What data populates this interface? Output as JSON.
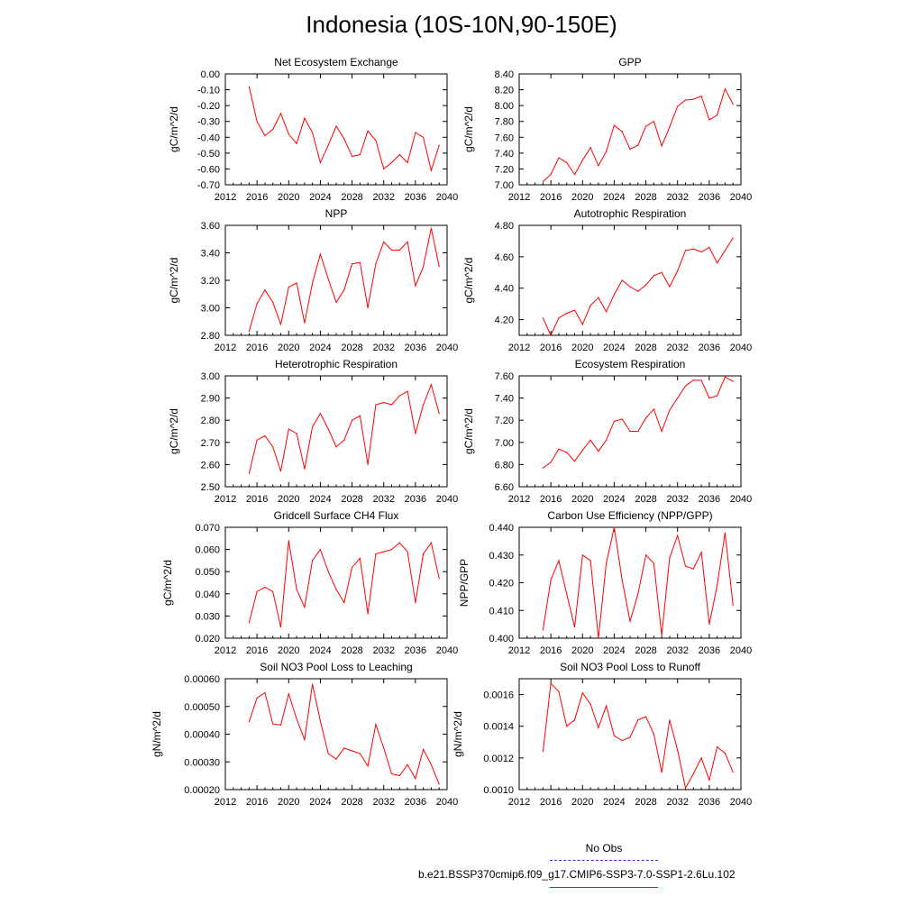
{
  "page": {
    "title": "Indonesia (10S-10N,90-150E)"
  },
  "legend": {
    "items": [
      {
        "label": "No Obs",
        "color": "#3333cc",
        "dash": true
      },
      {
        "label": "b.e21.BSSP370cmip6.f09_g17.CMIP6-SSP3-7.0-SSP1-2.6Lu.102",
        "color": "#ff0000",
        "dash": false
      }
    ]
  },
  "chart_data": [
    {
      "type": "line",
      "title": "Net Ecosystem Exchange",
      "ylabel": "gC/m^2/d",
      "xlabel": "",
      "xlim": [
        2012,
        2040
      ],
      "ylim": [
        -0.7,
        0.0
      ],
      "xticks": [
        "2012",
        "2016",
        "2020",
        "2024",
        "2028",
        "2032",
        "2036",
        "2040"
      ],
      "yticks": [
        "0.00",
        "-0.10",
        "-0.20",
        "-0.30",
        "-0.40",
        "-0.50",
        "-0.60",
        "-0.70"
      ],
      "x": [
        2015,
        2016,
        2017,
        2018,
        2019,
        2020,
        2021,
        2022,
        2023,
        2024,
        2025,
        2026,
        2027,
        2028,
        2029,
        2030,
        2031,
        2032,
        2033,
        2034,
        2035,
        2036,
        2037,
        2038,
        2039
      ],
      "series": [
        {
          "color": "#ff0000",
          "values": [
            -0.08,
            -0.3,
            -0.39,
            -0.35,
            -0.25,
            -0.38,
            -0.44,
            -0.28,
            -0.37,
            -0.56,
            -0.45,
            -0.33,
            -0.41,
            -0.52,
            -0.51,
            -0.36,
            -0.42,
            -0.6,
            -0.56,
            -0.51,
            -0.56,
            -0.37,
            -0.4,
            -0.61,
            -0.45
          ]
        }
      ]
    },
    {
      "type": "line",
      "title": "GPP",
      "ylabel": "gC/m^2/d",
      "xlabel": "",
      "xlim": [
        2012,
        2040
      ],
      "ylim": [
        7.0,
        8.4
      ],
      "xticks": [
        "2012",
        "2016",
        "2020",
        "2024",
        "2028",
        "2032",
        "2036",
        "2040"
      ],
      "yticks": [
        "8.40",
        "8.20",
        "8.00",
        "7.80",
        "7.60",
        "7.40",
        "7.20",
        "7.00"
      ],
      "x": [
        2015,
        2016,
        2017,
        2018,
        2019,
        2020,
        2021,
        2022,
        2023,
        2024,
        2025,
        2026,
        2027,
        2028,
        2029,
        2030,
        2031,
        2032,
        2033,
        2034,
        2035,
        2036,
        2037,
        2038,
        2039
      ],
      "series": [
        {
          "color": "#ff0000",
          "values": [
            7.04,
            7.13,
            7.34,
            7.28,
            7.13,
            7.31,
            7.47,
            7.24,
            7.42,
            7.75,
            7.67,
            7.45,
            7.5,
            7.74,
            7.8,
            7.49,
            7.73,
            7.99,
            8.07,
            8.08,
            8.12,
            7.82,
            7.88,
            8.21,
            8.02
          ]
        }
      ]
    },
    {
      "type": "line",
      "title": "NPP",
      "ylabel": "gC/m^2/d",
      "xlabel": "",
      "xlim": [
        2012,
        2040
      ],
      "ylim": [
        2.8,
        3.6
      ],
      "xticks": [
        "2012",
        "2016",
        "2020",
        "2024",
        "2028",
        "2032",
        "2036",
        "2040"
      ],
      "yticks": [
        "3.60",
        "3.40",
        "3.20",
        "3.00",
        "2.80"
      ],
      "x": [
        2015,
        2016,
        2017,
        2018,
        2019,
        2020,
        2021,
        2022,
        2023,
        2024,
        2025,
        2026,
        2027,
        2028,
        2029,
        2030,
        2031,
        2032,
        2033,
        2034,
        2035,
        2036,
        2037,
        2038,
        2039
      ],
      "series": [
        {
          "color": "#ff0000",
          "values": [
            2.83,
            3.03,
            3.13,
            3.04,
            2.88,
            3.15,
            3.18,
            2.89,
            3.18,
            3.39,
            3.21,
            3.04,
            3.13,
            3.32,
            3.33,
            3.0,
            3.32,
            3.48,
            3.42,
            3.42,
            3.48,
            3.16,
            3.3,
            3.58,
            3.3
          ]
        }
      ]
    },
    {
      "type": "line",
      "title": "Autotrophic Respiration",
      "ylabel": "gC/m^2/d",
      "xlabel": "",
      "xlim": [
        2012,
        2040
      ],
      "ylim": [
        4.1,
        4.8
      ],
      "xticks": [
        "2012",
        "2016",
        "2020",
        "2024",
        "2028",
        "2032",
        "2036",
        "2040"
      ],
      "yticks": [
        "4.80",
        "4.60",
        "4.40",
        "4.20"
      ],
      "x": [
        2015,
        2016,
        2017,
        2018,
        2019,
        2020,
        2021,
        2022,
        2023,
        2024,
        2025,
        2026,
        2027,
        2028,
        2029,
        2030,
        2031,
        2032,
        2033,
        2034,
        2035,
        2036,
        2037,
        2038,
        2039
      ],
      "series": [
        {
          "color": "#ff0000",
          "values": [
            4.21,
            4.1,
            4.21,
            4.24,
            4.26,
            4.17,
            4.29,
            4.34,
            4.25,
            4.36,
            4.45,
            4.41,
            4.38,
            4.42,
            4.48,
            4.5,
            4.41,
            4.51,
            4.64,
            4.65,
            4.63,
            4.66,
            4.56,
            4.64,
            4.72
          ]
        }
      ]
    },
    {
      "type": "line",
      "title": "Heterotrophic Respiration",
      "ylabel": "gC/m^2/d",
      "xlabel": "",
      "xlim": [
        2012,
        2040
      ],
      "ylim": [
        2.5,
        3.0
      ],
      "xticks": [
        "2012",
        "2016",
        "2020",
        "2024",
        "2028",
        "2032",
        "2036",
        "2040"
      ],
      "yticks": [
        "3.00",
        "2.90",
        "2.80",
        "2.70",
        "2.60",
        "2.50"
      ],
      "x": [
        2015,
        2016,
        2017,
        2018,
        2019,
        2020,
        2021,
        2022,
        2023,
        2024,
        2025,
        2026,
        2027,
        2028,
        2029,
        2030,
        2031,
        2032,
        2033,
        2034,
        2035,
        2036,
        2037,
        2038,
        2039
      ],
      "series": [
        {
          "color": "#ff0000",
          "values": [
            2.56,
            2.71,
            2.73,
            2.68,
            2.57,
            2.76,
            2.74,
            2.58,
            2.77,
            2.83,
            2.76,
            2.68,
            2.71,
            2.8,
            2.82,
            2.6,
            2.87,
            2.88,
            2.87,
            2.91,
            2.93,
            2.74,
            2.87,
            2.96,
            2.83
          ]
        }
      ]
    },
    {
      "type": "line",
      "title": "Ecosystem Respiration",
      "ylabel": "gC/m^2/d",
      "xlabel": "",
      "xlim": [
        2012,
        2040
      ],
      "ylim": [
        6.6,
        7.6
      ],
      "xticks": [
        "2012",
        "2016",
        "2020",
        "2024",
        "2028",
        "2032",
        "2036",
        "2040"
      ],
      "yticks": [
        "7.60",
        "7.40",
        "7.20",
        "7.00",
        "6.80",
        "6.60"
      ],
      "x": [
        2015,
        2016,
        2017,
        2018,
        2019,
        2020,
        2021,
        2022,
        2023,
        2024,
        2025,
        2026,
        2027,
        2028,
        2029,
        2030,
        2031,
        2032,
        2033,
        2034,
        2035,
        2036,
        2037,
        2038,
        2039
      ],
      "series": [
        {
          "color": "#ff0000",
          "values": [
            6.77,
            6.82,
            6.94,
            6.91,
            6.83,
            6.93,
            7.02,
            6.92,
            7.02,
            7.19,
            7.21,
            7.1,
            7.1,
            7.22,
            7.3,
            7.1,
            7.29,
            7.4,
            7.51,
            7.56,
            7.56,
            7.4,
            7.42,
            7.59,
            7.55
          ]
        }
      ]
    },
    {
      "type": "line",
      "title": "Gridcell Surface CH4 Flux",
      "ylabel": "gC/m^2/d",
      "xlabel": "",
      "xlim": [
        2012,
        2040
      ],
      "ylim": [
        0.02,
        0.07
      ],
      "xticks": [
        "2012",
        "2016",
        "2020",
        "2024",
        "2028",
        "2032",
        "2036",
        "2040"
      ],
      "yticks": [
        "0.070",
        "0.060",
        "0.050",
        "0.040",
        "0.030",
        "0.020"
      ],
      "x": [
        2015,
        2016,
        2017,
        2018,
        2019,
        2020,
        2021,
        2022,
        2023,
        2024,
        2025,
        2026,
        2027,
        2028,
        2029,
        2030,
        2031,
        2032,
        2033,
        2034,
        2035,
        2036,
        2037,
        2038,
        2039
      ],
      "series": [
        {
          "color": "#ff0000",
          "values": [
            0.027,
            0.041,
            0.043,
            0.041,
            0.025,
            0.064,
            0.042,
            0.034,
            0.055,
            0.06,
            0.05,
            0.042,
            0.036,
            0.052,
            0.056,
            0.031,
            0.058,
            0.059,
            0.06,
            0.063,
            0.059,
            0.036,
            0.058,
            0.063,
            0.047
          ]
        }
      ]
    },
    {
      "type": "line",
      "title": "Carbon Use Efficiency (NPP/GPP)",
      "ylabel": "NPP/GPP",
      "xlabel": "",
      "xlim": [
        2012,
        2040
      ],
      "ylim": [
        0.4,
        0.44
      ],
      "xticks": [
        "2012",
        "2016",
        "2020",
        "2024",
        "2028",
        "2032",
        "2036",
        "2040"
      ],
      "yticks": [
        "0.440",
        "0.430",
        "0.420",
        "0.410",
        "0.400"
      ],
      "x": [
        2015,
        2016,
        2017,
        2018,
        2019,
        2020,
        2021,
        2022,
        2023,
        2024,
        2025,
        2026,
        2027,
        2028,
        2029,
        2030,
        2031,
        2032,
        2033,
        2034,
        2035,
        2036,
        2037,
        2038,
        2039
      ],
      "series": [
        {
          "color": "#ff0000",
          "values": [
            0.403,
            0.421,
            0.428,
            0.416,
            0.404,
            0.43,
            0.428,
            0.4,
            0.427,
            0.44,
            0.421,
            0.406,
            0.416,
            0.43,
            0.427,
            0.401,
            0.429,
            0.437,
            0.426,
            0.425,
            0.431,
            0.405,
            0.419,
            0.438,
            0.412
          ]
        }
      ]
    },
    {
      "type": "line",
      "title": "Soil NO3 Pool Loss to Leaching",
      "ylabel": "gN/m^2/d",
      "xlabel": "",
      "xlim": [
        2012,
        2040
      ],
      "ylim": [
        0.0002,
        0.0006
      ],
      "xticks": [
        "2012",
        "2016",
        "2020",
        "2024",
        "2028",
        "2032",
        "2036",
        "2040"
      ],
      "yticks": [
        "0.00060",
        "0.00050",
        "0.00040",
        "0.00030",
        "0.00020"
      ],
      "x": [
        2015,
        2016,
        2017,
        2018,
        2019,
        2020,
        2021,
        2022,
        2023,
        2024,
        2025,
        2026,
        2027,
        2028,
        2029,
        2030,
        2031,
        2032,
        2033,
        2034,
        2035,
        2036,
        2037,
        2038,
        2039
      ],
      "series": [
        {
          "color": "#ff0000",
          "values": [
            0.000445,
            0.00053,
            0.00055,
            0.000437,
            0.000433,
            0.000545,
            0.000455,
            0.00038,
            0.00058,
            0.000447,
            0.00033,
            0.00031,
            0.00035,
            0.00034,
            0.00033,
            0.000285,
            0.000435,
            0.00035,
            0.000257,
            0.00025,
            0.00029,
            0.00024,
            0.000345,
            0.00029,
            0.00022
          ]
        }
      ]
    },
    {
      "type": "line",
      "title": "Soil NO3 Pool Loss to Runoff",
      "ylabel": "gN/m^2/d",
      "xlabel": "",
      "xlim": [
        2012,
        2040
      ],
      "ylim": [
        0.001,
        0.0017
      ],
      "xticks": [
        "2012",
        "2016",
        "2020",
        "2024",
        "2028",
        "2032",
        "2036",
        "2040"
      ],
      "yticks": [
        "0.0016",
        "0.0014",
        "0.0012",
        "0.0010"
      ],
      "x": [
        2015,
        2016,
        2017,
        2018,
        2019,
        2020,
        2021,
        2022,
        2023,
        2024,
        2025,
        2026,
        2027,
        2028,
        2029,
        2030,
        2031,
        2032,
        2033,
        2034,
        2035,
        2036,
        2037,
        2038,
        2039
      ],
      "series": [
        {
          "color": "#ff0000",
          "values": [
            0.00124,
            0.00167,
            0.00162,
            0.0014,
            0.00144,
            0.00161,
            0.00154,
            0.00139,
            0.00153,
            0.00134,
            0.00131,
            0.00133,
            0.00144,
            0.00146,
            0.00135,
            0.00111,
            0.00144,
            0.00125,
            0.00101,
            0.0011,
            0.0012,
            0.00106,
            0.00127,
            0.00123,
            0.00111
          ]
        }
      ]
    }
  ]
}
